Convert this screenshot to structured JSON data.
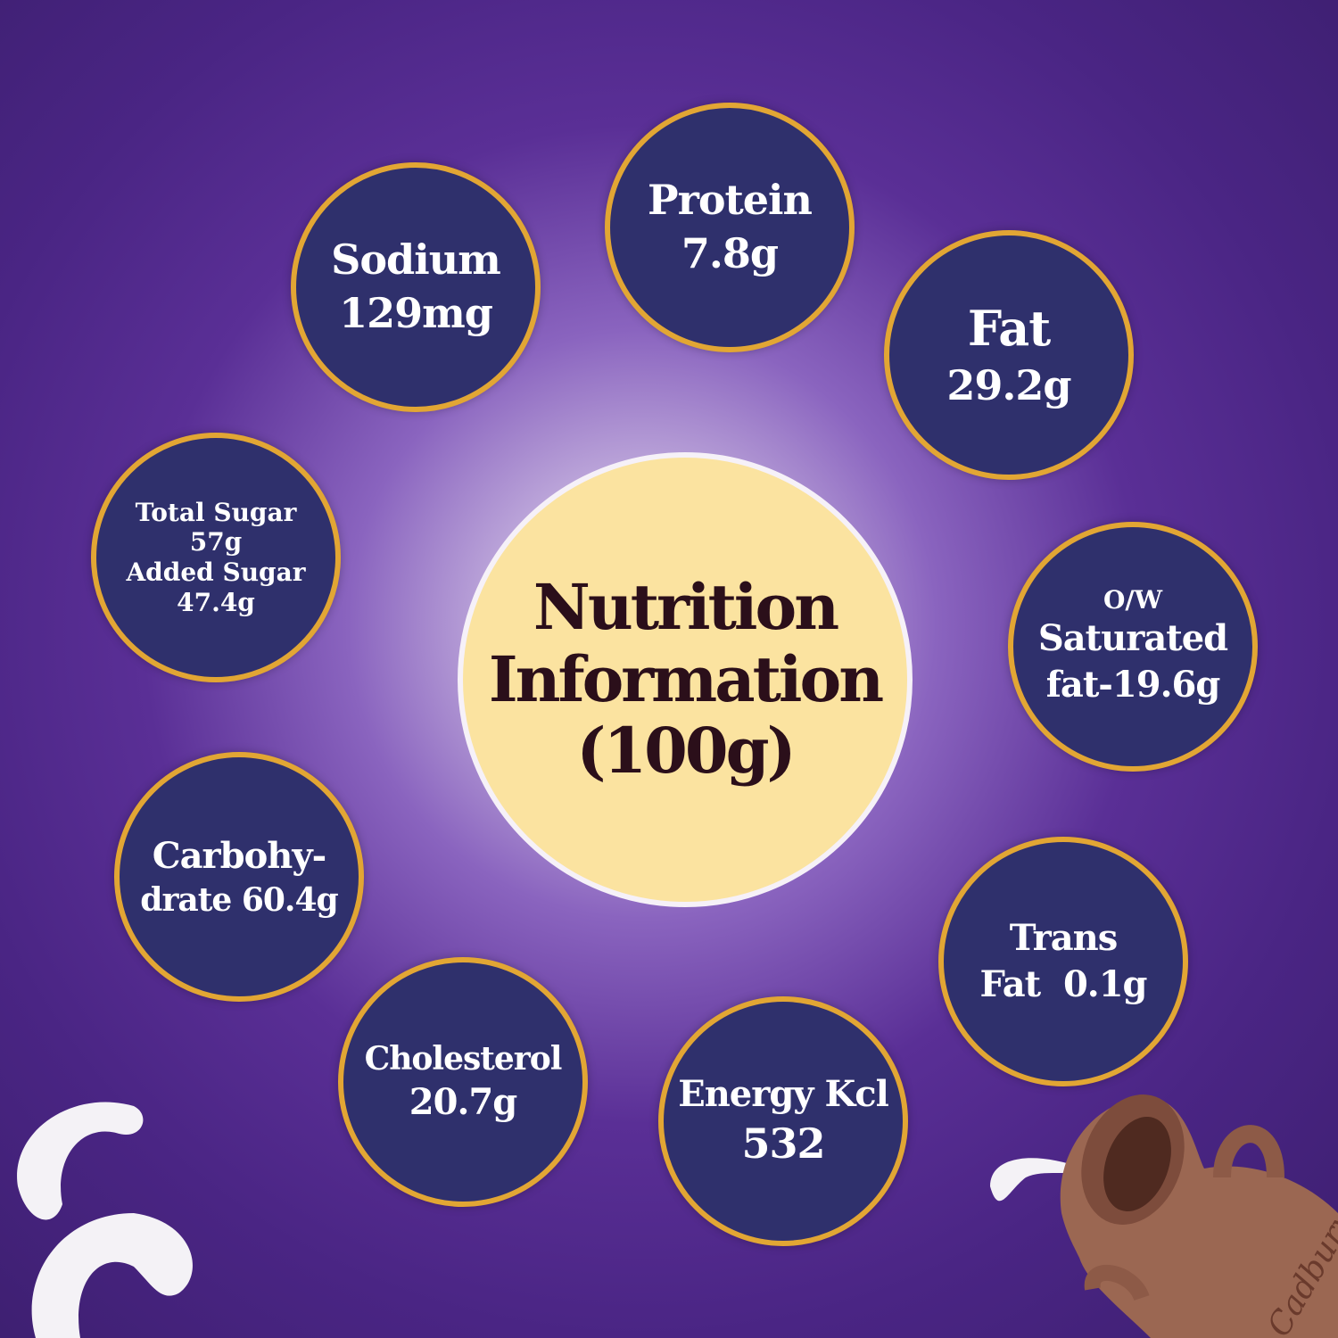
{
  "center": {
    "line1": "Nutrition",
    "line2": "Information",
    "line3": "(100g)"
  },
  "nutrients": {
    "sodium": {
      "label": "Sodium",
      "value": "129mg"
    },
    "protein": {
      "label": "Protein",
      "value": "7.8g"
    },
    "fat": {
      "label": "Fat",
      "value": "29.2g"
    },
    "sugar": {
      "total_label": "Total Sugar",
      "total_value": "57g",
      "added_label": "Added Sugar",
      "added_value": "47.4g"
    },
    "saturated": {
      "prefix": "O/W",
      "label": "Saturated",
      "value": "fat-19.6g"
    },
    "carbohydrate": {
      "label": "Carbohy-",
      "value": "drate 60.4g"
    },
    "trans": {
      "label": "Trans",
      "value": "Fat  0.1g"
    },
    "cholesterol": {
      "label": "Cholesterol",
      "value": "20.7g"
    },
    "energy": {
      "label": "Energy Kcl",
      "value": "532"
    }
  },
  "brand": {
    "jug_text": "Cadbury"
  },
  "colors": {
    "background": "#4a2584",
    "bubble": "#2f306c",
    "ring": "#e2a634",
    "center": "#fbe3a0",
    "center_text": "#2b0f1a"
  }
}
